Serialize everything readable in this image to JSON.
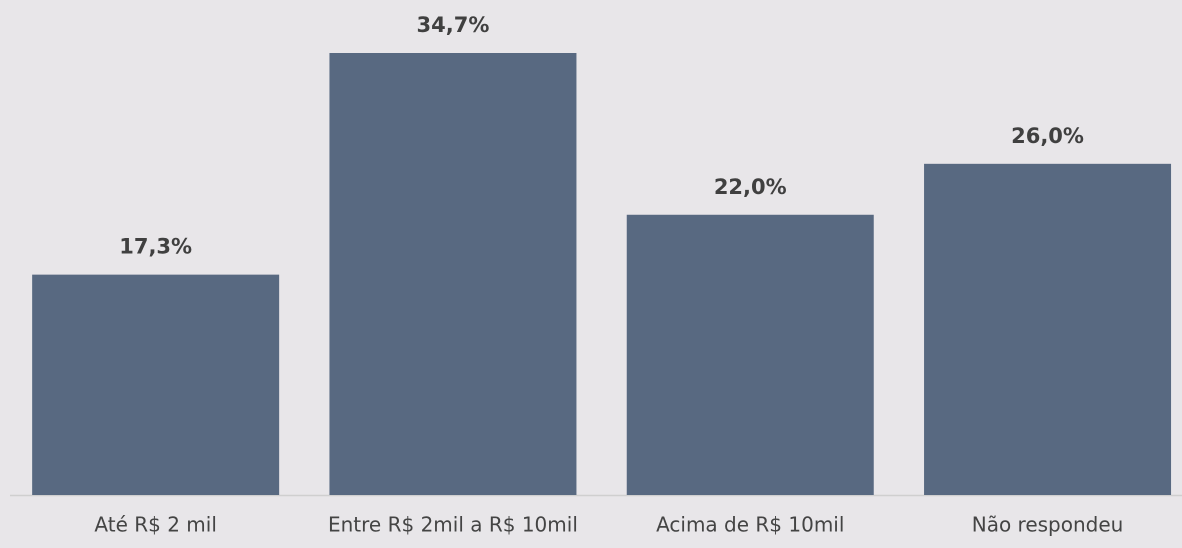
{
  "chart_data": {
    "type": "bar",
    "categories": [
      "Até R$ 2 mil",
      "Entre R$ 2mil a R$ 10mil",
      "Acima de R$ 10mil",
      "Não respondeu"
    ],
    "values": [
      17.3,
      34.7,
      22.0,
      26.0
    ],
    "value_labels": [
      "17,3%",
      "34,7%",
      "22,0%",
      "26,0%"
    ],
    "color": "#586981"
  }
}
